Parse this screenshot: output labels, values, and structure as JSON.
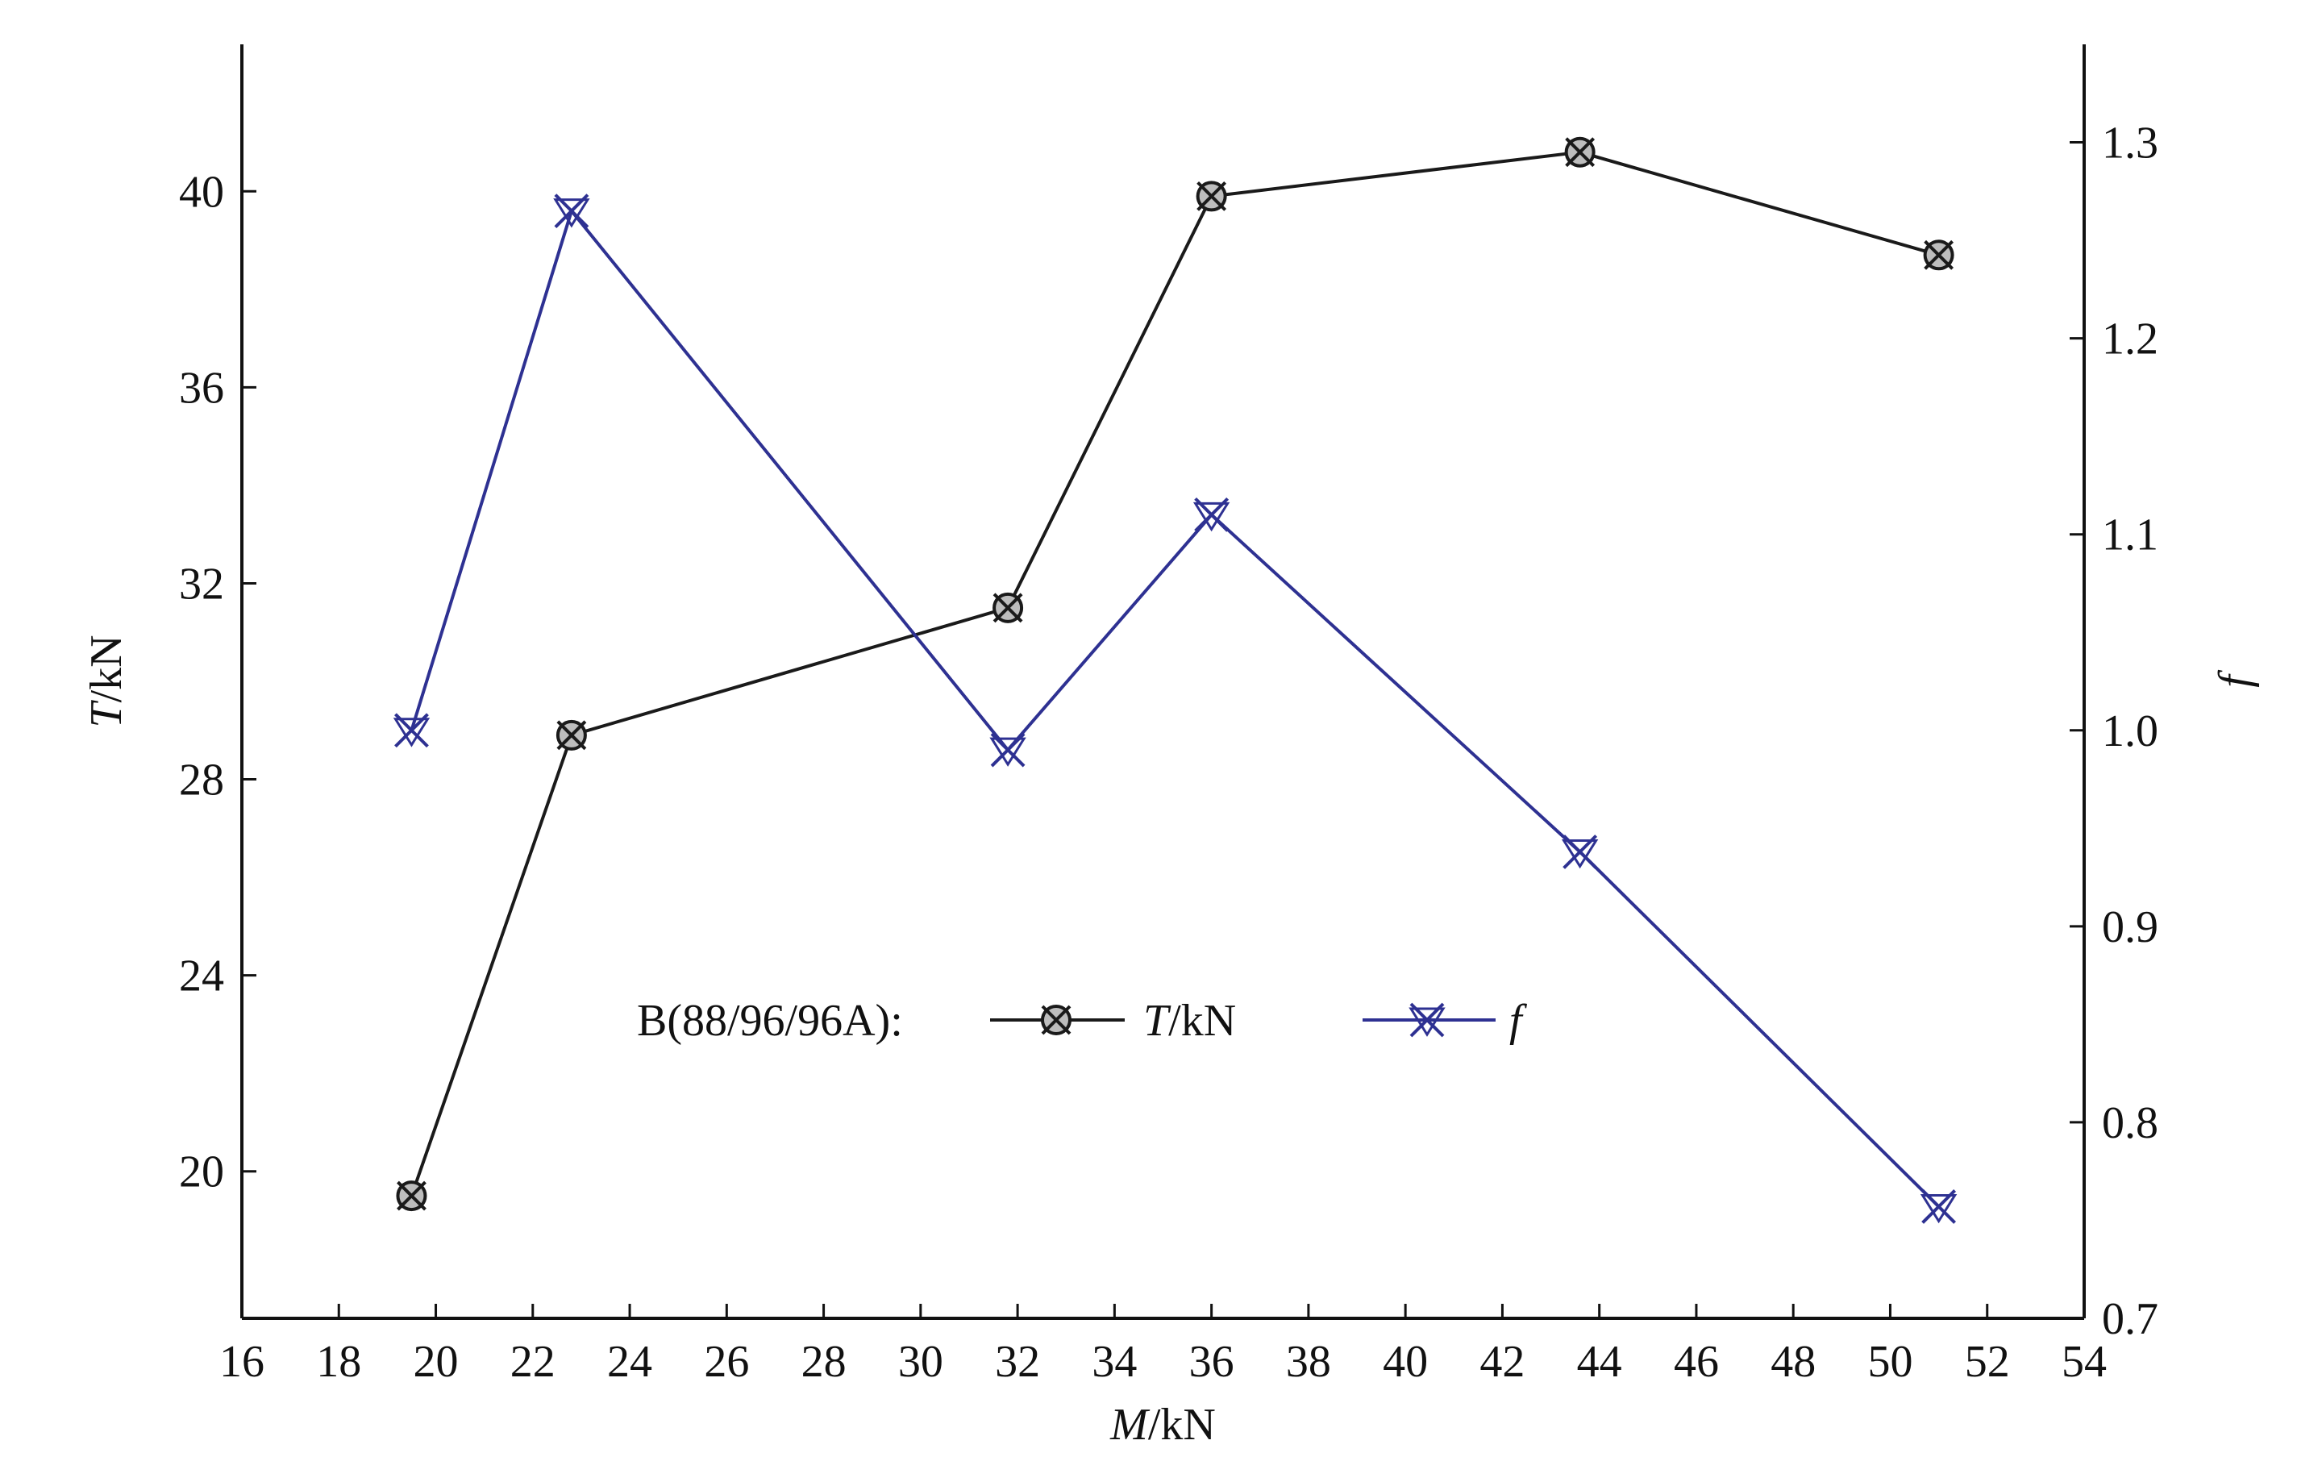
{
  "chart_data": {
    "type": "line",
    "title": "",
    "xlabel_italic": "M",
    "xlabel_unit": "/kN",
    "ylabel_italic": "T",
    "ylabel_unit": "/kN",
    "y2label_italic": "f",
    "xlim": [
      16,
      54
    ],
    "ylim": [
      17,
      43
    ],
    "y2lim": [
      0.7,
      1.35
    ],
    "x_ticks": [
      16,
      18,
      20,
      22,
      24,
      26,
      28,
      30,
      32,
      34,
      36,
      38,
      40,
      42,
      44,
      46,
      48,
      50,
      52,
      54
    ],
    "y_ticks": [
      20,
      24,
      28,
      32,
      36,
      40
    ],
    "y2_ticks": [
      "0.7",
      "0.8",
      "0.9",
      "1.0",
      "1.1",
      "1.2",
      "1.3"
    ],
    "grid": false,
    "legend": {
      "position": "center",
      "prefix": "B(88/96/96A):",
      "entries": [
        {
          "italic": "T",
          "rest": "/kN"
        },
        {
          "italic": "f",
          "rest": ""
        }
      ]
    },
    "series": [
      {
        "axis": "left",
        "color": "#1a1a1a",
        "marker": "crossed-circle",
        "points": [
          {
            "x": 19.5,
            "y": 19.5
          },
          {
            "x": 22.8,
            "y": 28.9
          },
          {
            "x": 31.8,
            "y": 31.5
          },
          {
            "x": 36.0,
            "y": 39.9
          },
          {
            "x": 43.6,
            "y": 40.8
          },
          {
            "x": 51.0,
            "y": 38.7
          }
        ]
      },
      {
        "axis": "right",
        "color": "#2e3192",
        "marker": "x-triangle",
        "points": [
          {
            "x": 19.5,
            "y": 1.0
          },
          {
            "x": 22.8,
            "y": 1.265
          },
          {
            "x": 31.8,
            "y": 0.99
          },
          {
            "x": 36.0,
            "y": 1.11
          },
          {
            "x": 43.6,
            "y": 0.938
          },
          {
            "x": 51.0,
            "y": 0.757
          }
        ]
      }
    ]
  }
}
